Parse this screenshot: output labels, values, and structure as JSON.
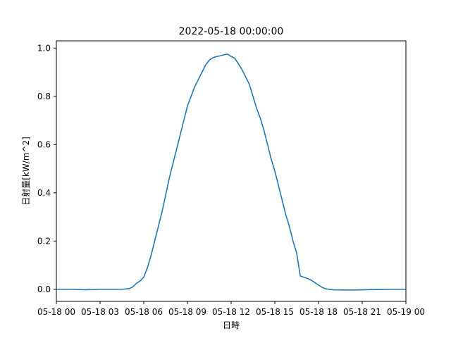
{
  "chart_data": {
    "type": "line",
    "title": "2022-05-18 00:00:00",
    "xlabel": "日時",
    "ylabel": "日射量[kW/m^2]",
    "x_unit": "hour",
    "xlim": [
      0,
      24
    ],
    "ylim": [
      -0.05,
      1.03
    ],
    "grid": false,
    "line_color": "#1f77b4",
    "x_ticks": [
      {
        "value": 0,
        "label": "05-18 00"
      },
      {
        "value": 3,
        "label": "05-18 03"
      },
      {
        "value": 6,
        "label": "05-18 06"
      },
      {
        "value": 9,
        "label": "05-18 09"
      },
      {
        "value": 12,
        "label": "05-18 12"
      },
      {
        "value": 15,
        "label": "05-18 15"
      },
      {
        "value": 18,
        "label": "05-18 18"
      },
      {
        "value": 21,
        "label": "05-18 21"
      },
      {
        "value": 24,
        "label": "05-19 00"
      }
    ],
    "y_ticks": [
      {
        "value": 0.0,
        "label": "0.0"
      },
      {
        "value": 0.2,
        "label": "0.2"
      },
      {
        "value": 0.4,
        "label": "0.4"
      },
      {
        "value": 0.6,
        "label": "0.6"
      },
      {
        "value": 0.8,
        "label": "0.8"
      },
      {
        "value": 1.0,
        "label": "1.0"
      }
    ],
    "series": [
      {
        "x": [
          0,
          1,
          2,
          3,
          4,
          4.5,
          5,
          5.25,
          5.5,
          5.75,
          6,
          6.25,
          6.5,
          6.75,
          7,
          7.25,
          7.5,
          7.75,
          8,
          8.25,
          8.5,
          8.75,
          9,
          9.25,
          9.5,
          9.75,
          10,
          10.25,
          10.5,
          10.75,
          11,
          11.25,
          11.5,
          11.75,
          12,
          12.25,
          12.5,
          12.75,
          13,
          13.25,
          13.5,
          13.75,
          14,
          14.25,
          14.5,
          14.75,
          15,
          15.25,
          15.5,
          15.75,
          16,
          16.25,
          16.5,
          16.75,
          17,
          17.25,
          17.5,
          17.75,
          18,
          18.25,
          18.5,
          19,
          20,
          21,
          22,
          23,
          24
        ],
        "y": [
          0.0,
          0.0,
          -0.002,
          0.0,
          0.0,
          0.0,
          0.003,
          0.01,
          0.025,
          0.035,
          0.05,
          0.09,
          0.14,
          0.2,
          0.26,
          0.32,
          0.39,
          0.46,
          0.52,
          0.58,
          0.64,
          0.7,
          0.76,
          0.8,
          0.84,
          0.87,
          0.9,
          0.93,
          0.95,
          0.96,
          0.965,
          0.968,
          0.972,
          0.975,
          0.965,
          0.958,
          0.935,
          0.91,
          0.88,
          0.85,
          0.8,
          0.75,
          0.71,
          0.66,
          0.6,
          0.54,
          0.49,
          0.43,
          0.37,
          0.31,
          0.26,
          0.2,
          0.15,
          0.055,
          0.05,
          0.045,
          0.038,
          0.028,
          0.018,
          0.008,
          0.002,
          -0.002,
          -0.003,
          -0.002,
          -0.001,
          0.0,
          0.0
        ]
      }
    ]
  }
}
